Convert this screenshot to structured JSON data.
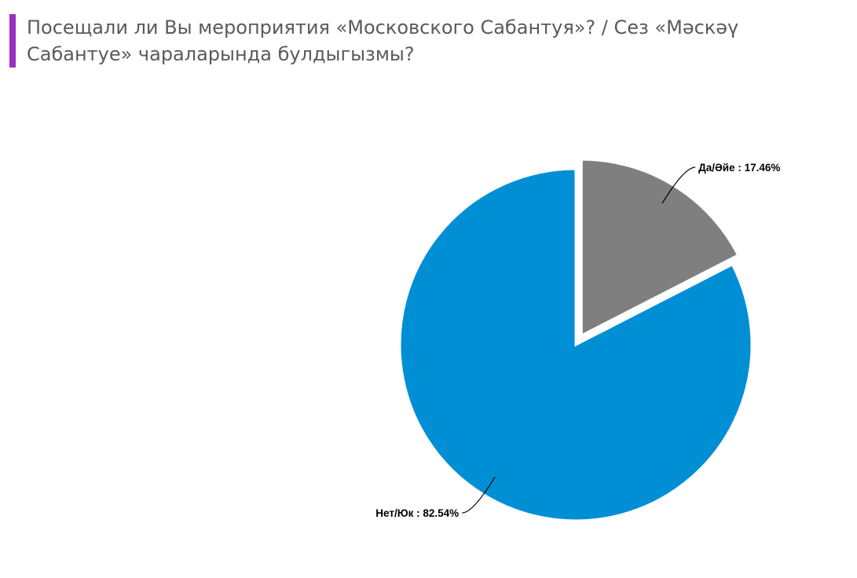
{
  "title": "Посещали ли Вы мероприятия «Московского Сабантуя»? / Сез «Мәскәү Сабантуе» чараларында булдыгызмы?",
  "accent_color": "#9b30c0",
  "chart_data": {
    "type": "pie",
    "title": "Посещали ли Вы мероприятия «Московского Сабантуя»? / Сез «Мәскәү Сабантуе» чараларында булдыгызмы?",
    "slices": [
      {
        "label": "Да/Әйе",
        "value": 17.46,
        "display": "Да/Әйе : 17.46%",
        "color": "#7f7f7f",
        "exploded": true
      },
      {
        "label": "Нет/Юк",
        "value": 82.54,
        "display": "Нет/Юк : 82.54%",
        "color": "#008fd5",
        "exploded": false
      }
    ],
    "start_angle_deg": 0,
    "direction": "clockwise",
    "legend": "none"
  }
}
